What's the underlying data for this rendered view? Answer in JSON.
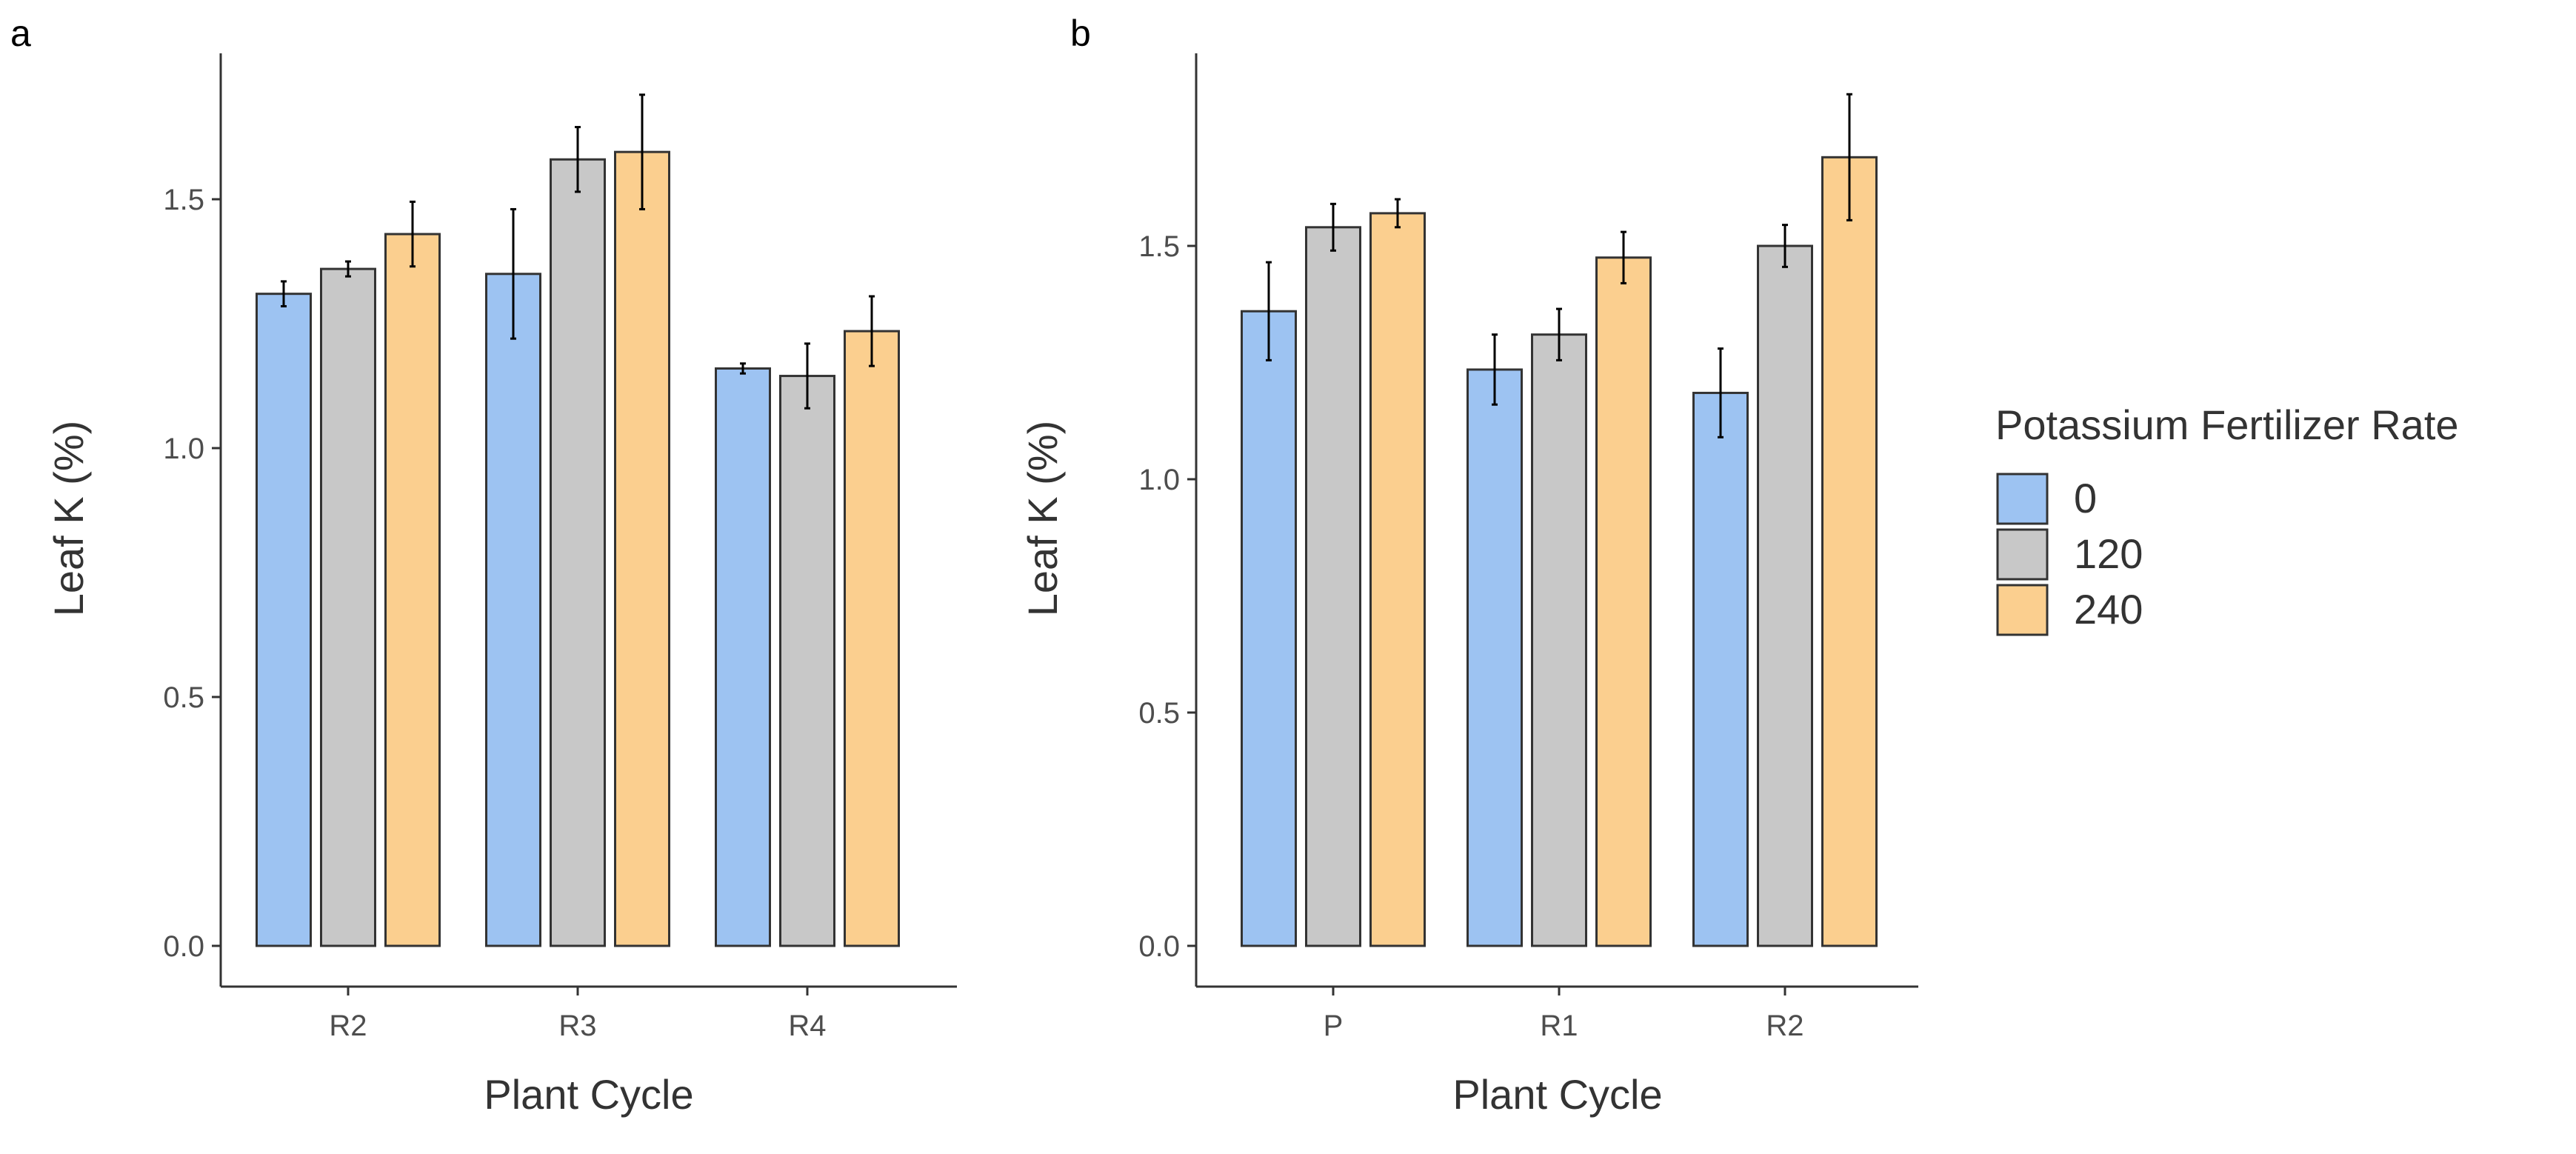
{
  "chart_data": [
    {
      "type": "bar",
      "panel": "a",
      "categories": [
        "R2",
        "R3",
        "R4"
      ],
      "series": [
        {
          "name": "0",
          "values": [
            1.31,
            1.35,
            1.16
          ],
          "errors": [
            0.025,
            0.13,
            0.01
          ]
        },
        {
          "name": "120",
          "values": [
            1.36,
            1.58,
            1.145
          ],
          "errors": [
            0.015,
            0.065,
            0.065
          ]
        },
        {
          "name": "240",
          "values": [
            1.43,
            1.595,
            1.235
          ],
          "errors": [
            0.065,
            0.115,
            0.07
          ]
        }
      ],
      "xlabel": "Plant Cycle",
      "ylabel": "Leaf K (%)",
      "ylim": [
        0,
        1.8
      ],
      "yticks": [
        "0.0",
        "0.5",
        "1.0",
        "1.5"
      ]
    },
    {
      "type": "bar",
      "panel": "b",
      "categories": [
        "P",
        "R1",
        "R2"
      ],
      "series": [
        {
          "name": "0",
          "values": [
            1.36,
            1.235,
            1.185
          ],
          "errors": [
            0.105,
            0.075,
            0.095
          ]
        },
        {
          "name": "120",
          "values": [
            1.54,
            1.31,
            1.5
          ],
          "errors": [
            0.05,
            0.055,
            0.045
          ]
        },
        {
          "name": "240",
          "values": [
            1.57,
            1.475,
            1.69
          ],
          "errors": [
            0.03,
            0.055,
            0.135
          ]
        }
      ],
      "xlabel": "Plant Cycle",
      "ylabel": "Leaf K (%)",
      "ylim": [
        0,
        1.9
      ],
      "yticks": [
        "0.0",
        "0.5",
        "1.0",
        "1.5"
      ]
    }
  ],
  "legend": {
    "title": "Potassium Fertilizer Rate",
    "position": "right",
    "items": [
      {
        "label": "0",
        "color": "#9dc3f2"
      },
      {
        "label": "120",
        "color": "#c8c8c8"
      },
      {
        "label": "240",
        "color": "#fbcf8f"
      }
    ]
  },
  "colors": {
    "bar_stroke": "#333333",
    "axis": "#333333",
    "error_bar": "#000000"
  }
}
